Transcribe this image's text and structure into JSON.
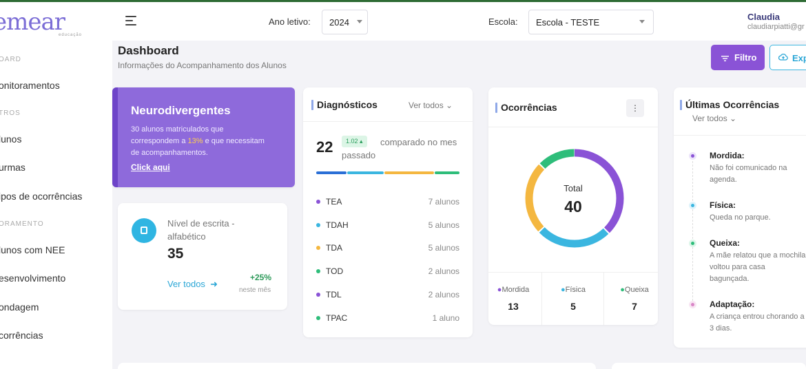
{
  "sidebar": {
    "logo": "emear",
    "logo_sub": "educação",
    "sections": [
      {
        "label": "OARD"
      },
      {
        "label": "TROS"
      },
      {
        "label": "ORAMENTO"
      }
    ],
    "items": [
      {
        "label": "onitoramentos"
      },
      {
        "label": "lunos"
      },
      {
        "label": "urmas"
      },
      {
        "label": "ipos de ocorrências"
      },
      {
        "label": "lunos com NEE"
      },
      {
        "label": "esenvolvimento"
      },
      {
        "label": "ondagem"
      },
      {
        "label": "corrências"
      }
    ]
  },
  "header": {
    "ano_label": "Ano letivo:",
    "ano_value": "2024",
    "escola_label": "Escola:",
    "escola_value": "Escola - TESTE",
    "user_name": "Claudia",
    "user_email": "claudiarpiatti@gr"
  },
  "page": {
    "title": "Dashboard",
    "subtitle": "Informações do Acompanhamento dos Alunos",
    "filter_label": "Filtro",
    "export_label": "Exp"
  },
  "neuro": {
    "title": "Neurodivergentes",
    "desc_a": "30 alunos matriculados que correspondem a ",
    "desc_pct": "13%",
    "desc_b": " e que necessitam de acompanhamentos.",
    "link": "Click aqui"
  },
  "nivel": {
    "label": "Nível de escrita - alfabético",
    "value": "35",
    "link": "Ver todos",
    "pct": "+25%",
    "pct_label": "neste mês"
  },
  "diagnosticos": {
    "title": "Diagnósticos",
    "ver_todos": "Ver todos",
    "total": "22",
    "badge": "1.02",
    "compare": "comparado no mes passado",
    "items": [
      {
        "name": "TEA",
        "count": "7 alunos",
        "color": "#8a53d6"
      },
      {
        "name": "TDAH",
        "count": "5 alunos",
        "color": "#3bb6e0"
      },
      {
        "name": "TDA",
        "count": "5 alunos",
        "color": "#f4b740"
      },
      {
        "name": "TOD",
        "count": "2 alunos",
        "color": "#2ebd7a"
      },
      {
        "name": "TDL",
        "count": "2 alunos",
        "color": "#8a53d6"
      },
      {
        "name": "TPAC",
        "count": "1 aluno",
        "color": "#2ebd7a"
      }
    ]
  },
  "ocorrencias": {
    "title": "Ocorrências",
    "total_label": "Total",
    "total": "40",
    "legend": [
      {
        "name": "Mordida",
        "value": "13",
        "color": "#8a53d6"
      },
      {
        "name": "Física",
        "value": "5",
        "color": "#3bb6e0"
      },
      {
        "name": "Queixa",
        "value": "7",
        "color": "#2ebd7a"
      }
    ],
    "donut_colors": [
      "#8a53d6",
      "#3bb6e0",
      "#f4b740",
      "#2ebd7a"
    ]
  },
  "ultimas": {
    "title": "Últimas Ocorrências",
    "ver_todos": "Ver todos",
    "items": [
      {
        "title": "Mordida:",
        "text": "Não foi comunicado na agenda.",
        "color": "#8a53d6"
      },
      {
        "title": "Física:",
        "text": "Queda no parque.",
        "color": "#3bb6e0"
      },
      {
        "title": "Queixa:",
        "text": "A mãe relatou que a mochila voltou para casa bagunçada.",
        "color": "#2ebd7a"
      },
      {
        "title": "Adaptação:",
        "text": "A criança entrou chorando a 3 dias.",
        "color": "#d986c7"
      }
    ]
  }
}
